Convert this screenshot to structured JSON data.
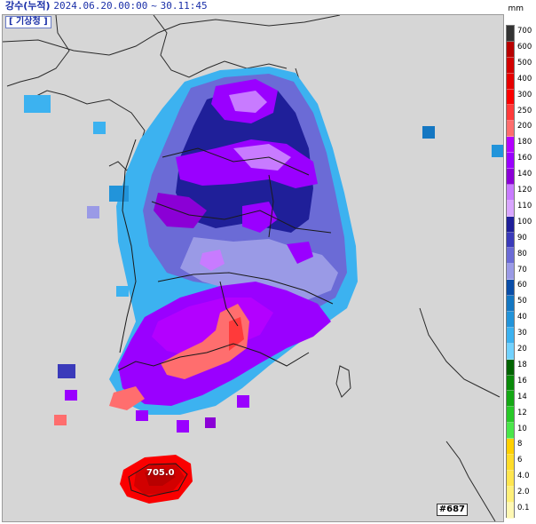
{
  "header": {
    "title": "강수(누적)",
    "time_start": "2024.06.20.00:00",
    "separator": "~",
    "time_end": "30.11:45",
    "agency": "[ 기상청 ]",
    "unit": "mm"
  },
  "legend": {
    "items": [
      {
        "label": "700",
        "color": "#333333"
      },
      {
        "label": "600",
        "color": "#b80000"
      },
      {
        "label": "500",
        "color": "#d20000"
      },
      {
        "label": "400",
        "color": "#e60000"
      },
      {
        "label": "300",
        "color": "#fa0000"
      },
      {
        "label": "250",
        "color": "#ff3a3a"
      },
      {
        "label": "200",
        "color": "#ff6e6e"
      },
      {
        "label": "180",
        "color": "#b300ff"
      },
      {
        "label": "160",
        "color": "#9a00ff"
      },
      {
        "label": "140",
        "color": "#8b00d6"
      },
      {
        "label": "120",
        "color": "#c87bff"
      },
      {
        "label": "110",
        "color": "#d9a6ff"
      },
      {
        "label": "100",
        "color": "#1f1f99"
      },
      {
        "label": "90",
        "color": "#3a3aba"
      },
      {
        "label": "80",
        "color": "#6b6bd6"
      },
      {
        "label": "70",
        "color": "#9a9ae6"
      },
      {
        "label": "60",
        "color": "#0a4ea8"
      },
      {
        "label": "50",
        "color": "#1477c2"
      },
      {
        "label": "40",
        "color": "#2294da"
      },
      {
        "label": "30",
        "color": "#3cb2f0"
      },
      {
        "label": "20",
        "color": "#72d2ff"
      },
      {
        "label": "18",
        "color": "#006400"
      },
      {
        "label": "16",
        "color": "#0a8a0a"
      },
      {
        "label": "14",
        "color": "#14a814"
      },
      {
        "label": "12",
        "color": "#28c828"
      },
      {
        "label": "10",
        "color": "#4ae64a"
      },
      {
        "label": "8",
        "color": "#ffd000"
      },
      {
        "label": "6",
        "color": "#ffdc2a"
      },
      {
        "label": "4.0",
        "color": "#ffe650"
      },
      {
        "label": "2.0",
        "color": "#fff07a"
      },
      {
        "label": "0.1",
        "color": "#fff8b4"
      }
    ]
  },
  "map": {
    "peak_value": "705.0",
    "badge": "#687",
    "background": "#d6d6d6"
  }
}
